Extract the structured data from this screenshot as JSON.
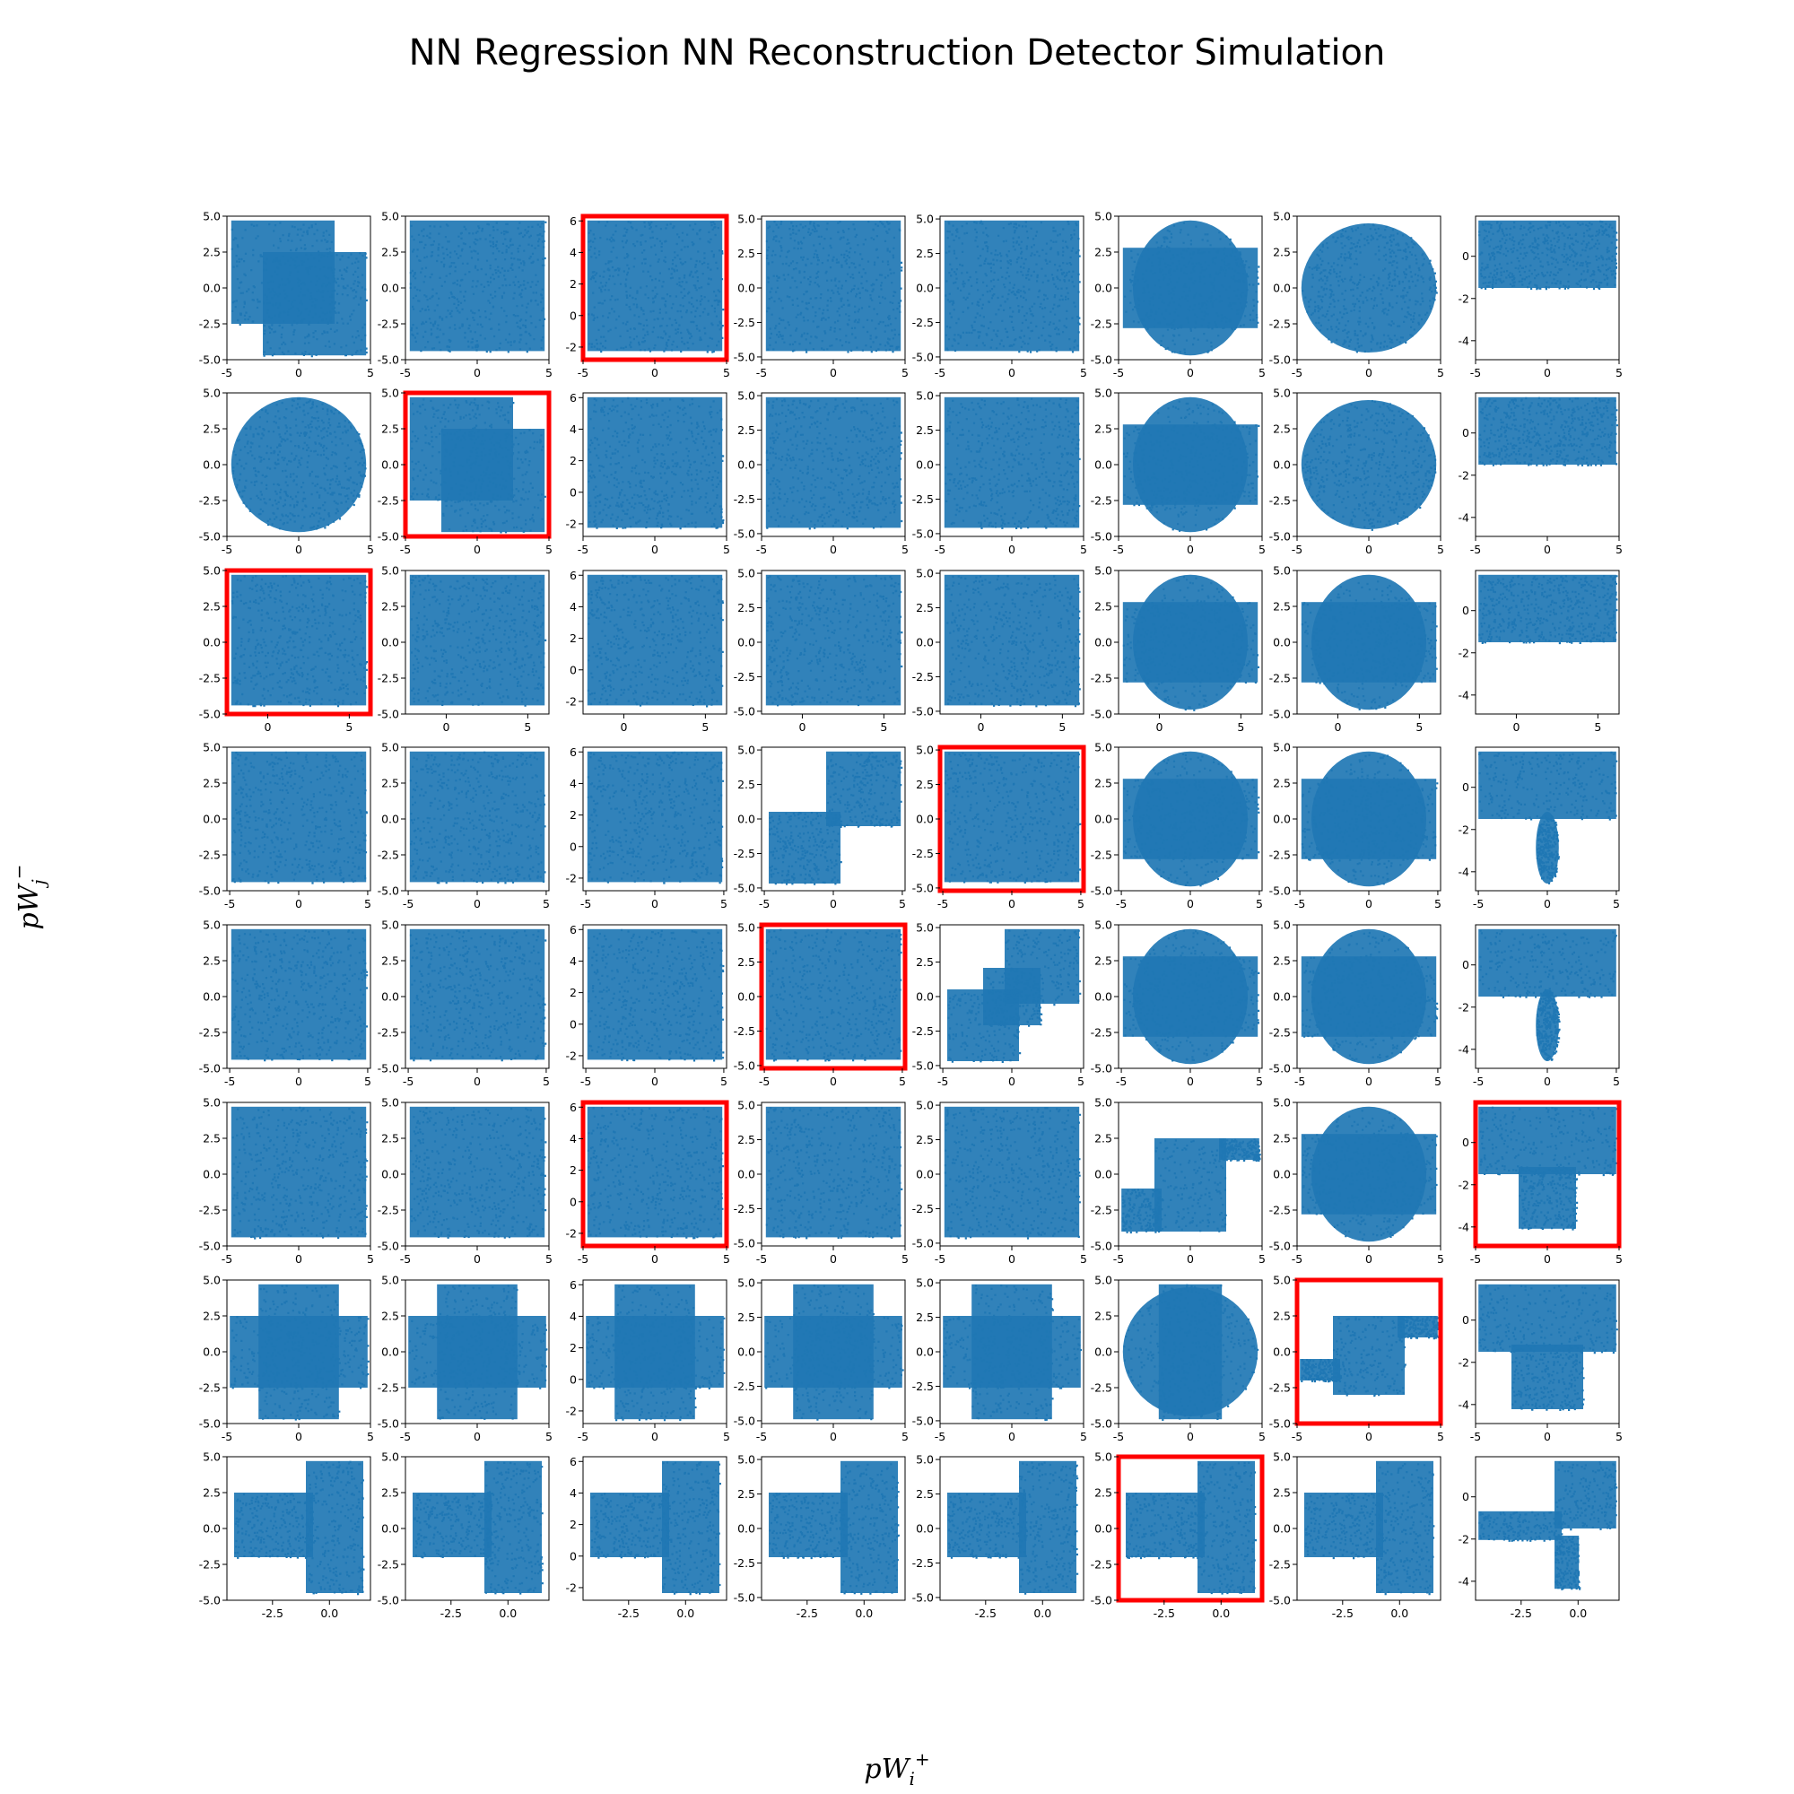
{
  "figure": {
    "title": "NN Regression NN Reconstruction Detector Simulation",
    "xlabel_base": "pW",
    "xlabel_sub": "i",
    "xlabel_sup": "+",
    "ylabel_base": "pW",
    "ylabel_sub": "j",
    "ylabel_sup": "−",
    "marker_color": "#1f77b4",
    "highlight_color": "#ff0000"
  },
  "chart_data": {
    "type": "scatter",
    "grid": false,
    "rows": 8,
    "cols": 8,
    "column_yticks": [
      [
        "5.0",
        "2.5",
        "0.0",
        "-2.5",
        "-5.0"
      ],
      [
        "5.0",
        "2.5",
        "0.0",
        "-2.5",
        "-5.0"
      ],
      [
        "6",
        "4",
        "2",
        "0",
        "-2"
      ],
      [
        "5.0",
        "2.5",
        "0.0",
        "-2.5",
        "-5.0"
      ],
      [
        "5.0",
        "2.5",
        "0.0",
        "-2.5",
        "-5.0"
      ],
      [
        "5.0",
        "2.5",
        "0.0",
        "-2.5",
        "-5.0"
      ],
      [
        "5.0",
        "2.5",
        "0.0",
        "-2.5",
        "-5.0"
      ],
      [
        "0",
        "-2",
        "-4"
      ]
    ],
    "column_ylim": [
      [
        -5,
        5
      ],
      [
        -5,
        5
      ],
      [
        -2.8,
        6.3
      ],
      [
        -5.2,
        5.2
      ],
      [
        -5.2,
        5.2
      ],
      [
        -5,
        5
      ],
      [
        -5,
        5
      ],
      [
        -4.9,
        1.9
      ]
    ],
    "row_xticks": [
      [
        "-5",
        "0",
        "5"
      ],
      [
        "-5",
        "0",
        "5"
      ],
      [
        "0",
        "5"
      ],
      [
        "-5",
        "0",
        "5"
      ],
      [
        "-5",
        "0",
        "5"
      ],
      [
        "-5",
        "0",
        "5"
      ],
      [
        "-5",
        "0",
        "5"
      ],
      [
        "-2.5",
        "0.0"
      ]
    ],
    "row_xlim": [
      [
        -5,
        5
      ],
      [
        -5,
        5
      ],
      [
        -2.5,
        6.3
      ],
      [
        -5.2,
        5.2
      ],
      [
        -5.2,
        5.2
      ],
      [
        -5,
        5
      ],
      [
        -5,
        5
      ],
      [
        -4.5,
        1.8
      ]
    ],
    "highlighted_panels": [
      [
        0,
        2
      ],
      [
        1,
        1
      ],
      [
        2,
        0
      ],
      [
        3,
        4
      ],
      [
        4,
        3
      ],
      [
        5,
        2
      ],
      [
        5,
        7
      ],
      [
        6,
        6
      ],
      [
        7,
        5
      ]
    ]
  }
}
